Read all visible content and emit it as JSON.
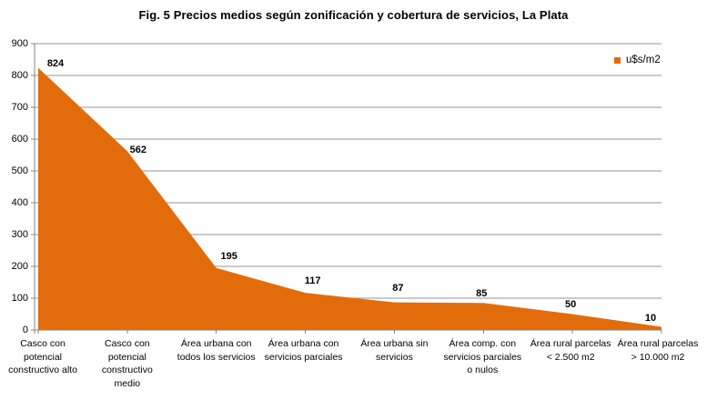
{
  "chart_data": {
    "type": "area",
    "title": "Fig. 5 Precios medios según zonificación y cobertura de servicios, La Plata",
    "legend_label": "u$s/m2",
    "legend_position": "top-right",
    "series_name": "u$s/m2",
    "series_color": "#E36C0A",
    "categories": [
      "Casco con\npotencial\nconstructivo alto",
      "Casco con\npotencial\nconstructivo\nmedio",
      "Área urbana con\ntodos los servicios",
      "Área urbana con\nservicios parciales",
      "Área urbana sin\nservicios",
      "Área comp. con\nservicios parciales\no nulos",
      "Área rural parcelas\n< 2.500 m2",
      "Área rural parcelas\n> 10.000 m2"
    ],
    "values": [
      824,
      562,
      195,
      117,
      87,
      85,
      50,
      10
    ],
    "data_labels_shown": true,
    "xlabel": "",
    "ylabel": "",
    "ylim": [
      0,
      900
    ],
    "ytick_step": 100,
    "yticks": [
      0,
      100,
      200,
      300,
      400,
      500,
      600,
      700,
      800,
      900
    ],
    "grid": true
  },
  "colors": {
    "series": "#E36C0A",
    "gridline": "#969696",
    "axis": "#868686",
    "text": "#000000",
    "background": "#FFFFFF"
  }
}
